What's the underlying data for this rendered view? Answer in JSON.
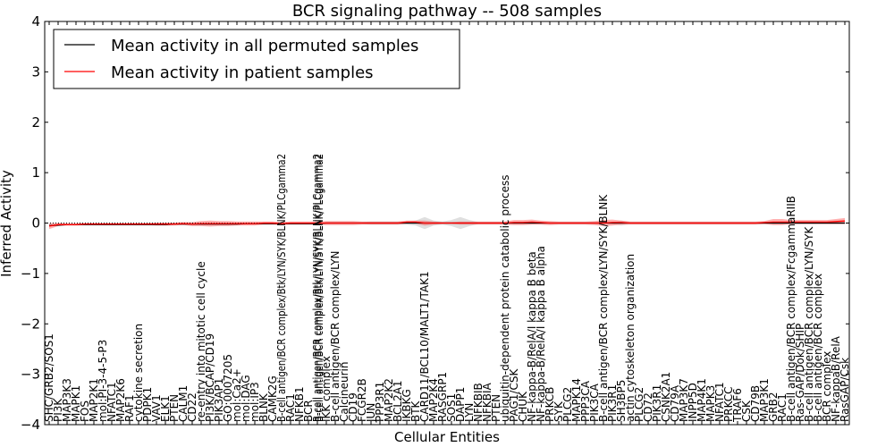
{
  "chart_data": {
    "type": "line",
    "title": "BCR signaling pathway -- 508 samples",
    "xlabel": "Cellular Entities",
    "ylabel": "Inferred Activity",
    "ylim": [
      -4,
      4
    ],
    "yticks": [
      -4,
      -3,
      -2,
      -1,
      0,
      1,
      2,
      3,
      4
    ],
    "ytick_labels": [
      "−4",
      "−3",
      "−2",
      "−1",
      "0",
      "1",
      "2",
      "3",
      "4"
    ],
    "legend": {
      "placement": "top-left",
      "entries": [
        {
          "label": "Mean activity in all permuted samples",
          "color": "#000000"
        },
        {
          "label": "Mean activity in patient samples",
          "color": "#ff0000"
        }
      ]
    },
    "categories": [
      "SHC/GRB2/SOS1",
      "PI3K",
      "MAP3K3",
      "MAPK1",
      "FOS",
      "MAP2K1",
      "mol:PI-3-4-5-P3",
      "NFATC1",
      "MAP2K6",
      "RAF1",
      "cytokine secretion",
      "PDPK1",
      "VAV1",
      "ELK1",
      "PTEN",
      "CALM1",
      "CD22",
      "re-entry into mitotic cell cycle",
      "PI3K/BCAP/CD19",
      "PIK3AP1",
      "GO:0007205",
      "mol:Ca2+",
      "mol:DAG",
      "mol:IP3",
      "BLNK",
      "CAMK2G",
      "B-cell antigen/BCR complex/Btk/LYN/SYK/BLNK/PLCgamma2",
      "RAC1",
      "NFKB1",
      "BCR",
      "B-cell antigen/BCR complex/Btk/LYN/SYK/BLNK/PLCgamma2",
      "IKK complex",
      "B-cell antigen/BCR complex/LYN",
      "Calcineurin",
      "CD19",
      "FCGR2B",
      "JUN",
      "PPP3R1",
      "MAP2K2",
      "BCL2A1",
      "IKBKG",
      "BTK",
      "CARD11/BCL10/MALT1/TAK1",
      "MAP2K4",
      "RASGRP1",
      "SOS1",
      "DAPP1",
      "LYN",
      "NFKBIB",
      "NFKBIA",
      "PTEN",
      "ubiquitin-dependent protein catabolic process",
      "PAG1/CSK",
      "CHUK",
      "NF-kappa-B/RelA/I kappa B beta",
      "NF-kappa-B/RelA/I kappa B alpha",
      "PRKCB",
      "SYK",
      "PLCG2",
      "MAPK14",
      "PPP3CA",
      "PIK3CA",
      "B-cell antigen/BCR complex/LYN/SYK/BLNK",
      "PIK3R1",
      "SH3BP5",
      "actin cytoskeleton organization",
      "PLCG2",
      "CD72",
      "PIK3R1",
      "CSNK2A1",
      "CD79A",
      "MAP3K7",
      "INPP5D",
      "MAP4K1",
      "MAPK3",
      "NFATC1",
      "PRKCC",
      "TRAF6",
      "CSK",
      "CD79B",
      "MAP3K1",
      "GRB2",
      "RAC1",
      "B-cell antigen/BCR complex/FcgammaRIIB",
      "Ras-GAP/Dok/SHIP",
      "B-cell antigen/BCR complex/LYN/SYK",
      "B-cell antigen/BCR complex",
      "BCR complex",
      "NF-kappaB/RelA",
      "RasGAP/Csk"
    ],
    "label_display_counts": [
      1,
      1,
      1,
      1,
      1,
      1,
      1,
      1,
      1,
      1,
      1,
      1,
      1,
      1,
      1,
      1,
      1,
      1,
      1,
      1,
      1,
      1,
      1,
      1,
      1,
      1,
      1,
      1,
      1,
      1,
      2,
      1,
      1,
      1,
      1,
      1,
      1,
      1,
      1,
      1,
      1,
      1,
      1,
      1,
      1,
      1,
      1,
      1,
      1,
      1,
      1,
      1,
      1,
      1,
      1,
      1,
      1,
      1,
      1,
      1,
      1,
      1,
      1,
      1,
      1,
      1,
      1,
      1,
      1,
      1,
      1,
      1,
      1,
      1,
      1,
      1,
      1,
      1,
      1,
      1,
      1,
      1,
      1,
      1,
      1,
      1,
      1,
      1,
      1,
      1
    ],
    "series": [
      {
        "name": "Mean activity in all permuted samples",
        "color": "#000000",
        "values": [
          -0.05,
          -0.04,
          -0.03,
          -0.03,
          -0.03,
          -0.03,
          -0.03,
          -0.03,
          -0.03,
          -0.03,
          -0.03,
          -0.03,
          -0.03,
          -0.03,
          -0.02,
          -0.02,
          -0.02,
          -0.02,
          -0.02,
          -0.02,
          -0.02,
          -0.02,
          -0.01,
          -0.01,
          -0.01,
          -0.01,
          -0.01,
          -0.01,
          -0.01,
          -0.01,
          -0.01,
          0,
          0,
          0,
          0,
          0,
          0,
          0,
          0,
          0,
          0,
          0,
          0,
          0,
          0,
          0,
          0,
          0,
          0,
          0,
          0,
          0,
          0,
          0,
          0,
          0,
          0,
          0,
          0,
          0,
          0,
          0,
          0,
          0,
          0,
          0,
          0,
          0,
          0,
          0,
          0,
          0,
          0,
          0,
          0,
          0,
          0,
          0,
          0,
          0,
          0,
          0,
          0,
          0,
          0,
          0,
          0,
          0,
          0,
          0
        ],
        "band": [
          0.01,
          0.01,
          0.01,
          0.01,
          0.01,
          0.01,
          0.01,
          0.01,
          0.01,
          0.01,
          0.01,
          0.01,
          0.01,
          0.01,
          0.01,
          0.01,
          0.02,
          0.02,
          0.02,
          0.02,
          0.02,
          0.02,
          0.02,
          0.02,
          0.02,
          0.02,
          0.02,
          0.02,
          0.02,
          0.02,
          0.02,
          0.02,
          0.02,
          0.02,
          0.02,
          0.02,
          0.03,
          0.03,
          0.03,
          0.03,
          0.03,
          0.05,
          0.12,
          0.05,
          0.03,
          0.06,
          0.12,
          0.06,
          0.02,
          0.02,
          0.02,
          0.02,
          0.02,
          0.02,
          0.02,
          0.02,
          0.02,
          0.02,
          0.02,
          0.02,
          0.02,
          0.02,
          0.02,
          0.02,
          0.05,
          0.02,
          0.02,
          0.02,
          0.02,
          0.02,
          0.02,
          0.02,
          0.02,
          0.02,
          0.02,
          0.02,
          0.02,
          0.02,
          0.02,
          0.02,
          0.02,
          0.02,
          0.02,
          0.02,
          0.02,
          0.02,
          0.02,
          0.02,
          0.02,
          0.02
        ]
      },
      {
        "name": "Mean activity in patient samples",
        "color": "#ff0000",
        "values": [
          -0.06,
          -0.03,
          -0.03,
          -0.03,
          -0.02,
          -0.02,
          -0.02,
          -0.02,
          -0.02,
          -0.02,
          -0.02,
          -0.02,
          -0.02,
          -0.02,
          -0.02,
          -0.01,
          -0.02,
          -0.01,
          -0.01,
          -0.01,
          -0.01,
          -0.01,
          -0.01,
          -0.01,
          0,
          0,
          -0.01,
          0,
          0,
          0,
          0,
          0,
          0,
          0,
          0,
          0,
          0,
          0,
          0,
          0,
          0.02,
          0.02,
          0,
          0,
          0,
          0,
          0,
          0,
          0,
          0,
          0,
          0,
          0.01,
          0.01,
          0.02,
          0.01,
          0,
          0,
          0,
          0,
          0,
          0,
          0,
          0.01,
          0.01,
          0,
          0,
          0,
          0,
          0,
          0,
          0,
          0,
          0,
          0,
          0,
          0,
          0,
          0,
          0,
          0.01,
          0.02,
          0.02,
          0.02,
          0.02,
          0.02,
          0.02,
          0.02,
          0.03,
          0.04
        ],
        "band": [
          0.06,
          0.03,
          0.02,
          0.02,
          0.02,
          0.02,
          0.02,
          0.02,
          0.02,
          0.02,
          0.02,
          0.02,
          0.03,
          0.03,
          0.03,
          0.03,
          0.04,
          0.05,
          0.06,
          0.05,
          0.05,
          0.04,
          0.04,
          0.04,
          0.03,
          0.03,
          0.03,
          0.03,
          0.03,
          0.03,
          0.03,
          0.04,
          0.04,
          0.04,
          0.04,
          0.03,
          0.03,
          0.03,
          0.03,
          0.03,
          0.03,
          0.03,
          0.05,
          0.03,
          0.02,
          0.02,
          0.03,
          0.03,
          0.03,
          0.03,
          0.03,
          0.03,
          0.05,
          0.05,
          0.05,
          0.04,
          0.04,
          0.03,
          0.03,
          0.03,
          0.03,
          0.04,
          0.06,
          0.06,
          0.04,
          0.03,
          0.03,
          0.03,
          0.03,
          0.03,
          0.03,
          0.03,
          0.03,
          0.03,
          0.03,
          0.03,
          0.03,
          0.03,
          0.03,
          0.03,
          0.03,
          0.06,
          0.06,
          0.04,
          0.04,
          0.04,
          0.04,
          0.04,
          0.05,
          0.06
        ]
      }
    ]
  }
}
